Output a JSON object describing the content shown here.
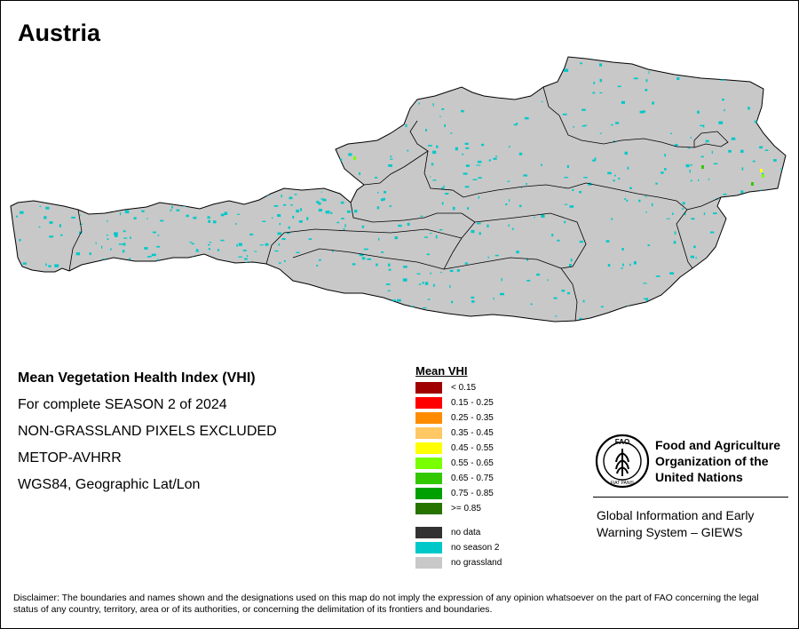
{
  "map": {
    "title": "Austria",
    "info_lines": [
      "Mean Vegetation Health Index (VHI)",
      "For complete SEASON 2 of 2024",
      "NON-GRASSLAND PIXELS EXCLUDED",
      "METOP-AVHRR",
      "WGS84, Geographic Lat/Lon"
    ],
    "colors": {
      "land": "#c8c8c8",
      "no_season": "#00c8c8",
      "border": "#000000"
    }
  },
  "legend": {
    "title": "Mean VHI",
    "classes": [
      {
        "label": "< 0.15",
        "color": "#a00000"
      },
      {
        "label": "0.15 - 0.25",
        "color": "#ff0000"
      },
      {
        "label": "0.25 - 0.35",
        "color": "#ff8c00"
      },
      {
        "label": "0.35 - 0.45",
        "color": "#ffc864"
      },
      {
        "label": "0.45 - 0.55",
        "color": "#ffff00"
      },
      {
        "label": "0.55 - 0.65",
        "color": "#78ff00"
      },
      {
        "label": "0.65 - 0.75",
        "color": "#32c800"
      },
      {
        "label": "0.75 - 0.85",
        "color": "#00a000"
      },
      {
        "label": ">= 0.85",
        "color": "#267300"
      }
    ],
    "other": [
      {
        "label": "no data",
        "color": "#323232"
      },
      {
        "label": "no season 2",
        "color": "#00c8c8"
      },
      {
        "label": "no grassland",
        "color": "#c8c8c8"
      }
    ]
  },
  "fao": {
    "logo_text": "FAO",
    "logo_motto": "FIAT PANIS",
    "name_lines": [
      "Food and Agriculture",
      "Organization of the",
      "United Nations"
    ],
    "giews_lines": [
      "Global Information and Early",
      "Warning System – GIEWS"
    ]
  },
  "disclaimer": "Disclaimer: The boundaries and names shown and the designations used on this map do not imply the expression of any opinion whatsoever on the part of FAO concerning the legal status of any country, territory, area or of its authorities, or concerning the delimitation of its frontiers and boundaries."
}
